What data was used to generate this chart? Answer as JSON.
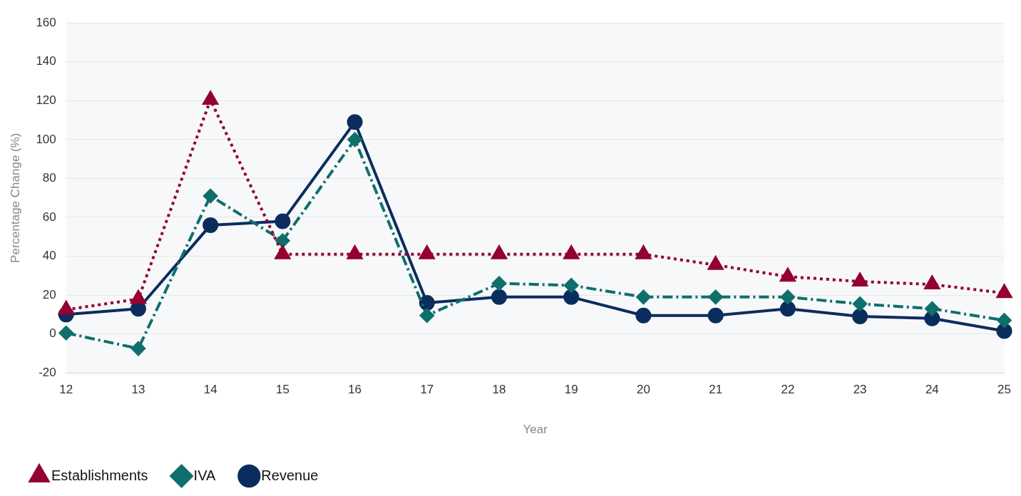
{
  "chart_data": {
    "type": "line",
    "xlabel": "Year",
    "ylabel": "Percentage Change (%)",
    "categories": [
      "12",
      "13",
      "14",
      "15",
      "16",
      "17",
      "18",
      "19",
      "20",
      "21",
      "22",
      "23",
      "24",
      "25"
    ],
    "series": [
      {
        "name": "Revenue",
        "color": "#0b2d5e",
        "marker": "circle",
        "line_style": "solid",
        "values": [
          10,
          13,
          56,
          58,
          109,
          16,
          19,
          19,
          9.5,
          9.5,
          13,
          9,
          8,
          1.5
        ]
      },
      {
        "name": "IVA",
        "color": "#0f6f6b",
        "marker": "diamond",
        "line_style": "dashed",
        "values": [
          0.5,
          -7.5,
          71,
          48,
          100,
          9.5,
          26,
          25,
          19,
          19,
          19,
          15.5,
          13,
          7
        ]
      },
      {
        "name": "Establishments",
        "color": "#94002f",
        "marker": "triangle",
        "line_style": "dotted",
        "values": [
          12.5,
          18,
          120.5,
          41,
          41,
          41,
          41,
          41,
          41,
          35.5,
          29.5,
          27,
          25.5,
          21
        ]
      }
    ],
    "ylim": [
      -20,
      160
    ],
    "yticks": [
      -20,
      0,
      20,
      40,
      60,
      80,
      100,
      120,
      140,
      160
    ],
    "grid": "y",
    "legend": "bottom left"
  }
}
